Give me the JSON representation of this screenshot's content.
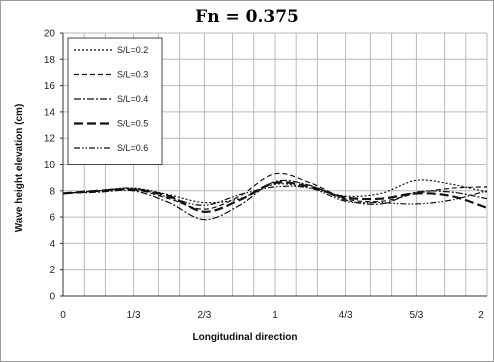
{
  "chart_data": {
    "type": "line",
    "title": "Fn = 0.375",
    "xlabel": "Longitudinal direction",
    "ylabel": "Wave height elevation (cm)",
    "x": [
      0,
      0.167,
      0.333,
      0.5,
      0.667,
      0.833,
      1.0,
      1.167,
      1.333,
      1.5,
      1.667,
      1.833,
      2.0
    ],
    "xlim": [
      0,
      2
    ],
    "ylim": [
      0,
      20
    ],
    "x_ticks": [
      {
        "value": 0,
        "label": "0"
      },
      {
        "value": 0.333,
        "label": "1/3"
      },
      {
        "value": 0.667,
        "label": "2/3"
      },
      {
        "value": 1.0,
        "label": "1"
      },
      {
        "value": 1.333,
        "label": "4/3"
      },
      {
        "value": 1.667,
        "label": "5/3"
      },
      {
        "value": 2.0,
        "label": "2"
      }
    ],
    "x_minor_gridlines": [
      0.1,
      0.2,
      0.333,
      0.45,
      0.55,
      0.667,
      0.8,
      0.9,
      1.0,
      1.1,
      1.2,
      1.333,
      1.45,
      1.55,
      1.667,
      1.8,
      1.9,
      2.0
    ],
    "y_ticks": [
      0,
      2,
      4,
      6,
      8,
      10,
      12,
      14,
      16,
      18,
      20
    ],
    "grid": true,
    "legend_position": "top-left",
    "series": [
      {
        "name": "S/L=0.2",
        "dash": "2,2",
        "width": 1.2,
        "values": [
          7.8,
          8.0,
          8.2,
          7.7,
          7.1,
          7.4,
          8.5,
          8.2,
          7.6,
          7.8,
          8.8,
          8.5,
          7.9
        ]
      },
      {
        "name": "S/L=0.3",
        "dash": "5,3",
        "width": 1.2,
        "values": [
          7.8,
          8.0,
          8.1,
          7.4,
          6.6,
          7.6,
          9.3,
          8.6,
          7.4,
          7.2,
          7.8,
          8.2,
          8.3
        ]
      },
      {
        "name": "S/L=0.4",
        "dash": "7,2,2,2",
        "width": 1.2,
        "values": [
          7.8,
          7.9,
          8.0,
          7.1,
          5.8,
          6.9,
          8.7,
          8.4,
          7.3,
          7.0,
          7.9,
          7.9,
          7.4
        ]
      },
      {
        "name": "S/L=0.5",
        "dash": "9,4",
        "width": 2.2,
        "values": [
          7.8,
          8.0,
          8.1,
          7.6,
          6.4,
          7.3,
          8.6,
          8.3,
          7.5,
          7.4,
          7.8,
          7.6,
          6.7
        ]
      },
      {
        "name": "S/L=0.6",
        "dash": "6,2,1.5,2,1.5,2",
        "width": 1.2,
        "values": [
          7.8,
          8.0,
          8.2,
          7.5,
          6.9,
          7.7,
          8.3,
          8.2,
          7.2,
          7.1,
          7.0,
          7.3,
          8.0
        ]
      }
    ]
  }
}
